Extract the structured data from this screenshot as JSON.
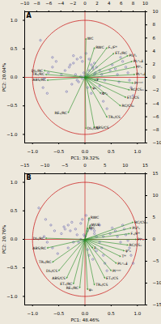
{
  "chart_data": [
    {
      "type": "biplot",
      "title": "A",
      "xlabel": "PC1: 39.32%",
      "ylabel": "PC2: 20.04%",
      "background_color": "#ede8dc",
      "xlim": [
        -1.15,
        1.15
      ],
      "ylim": [
        -1.15,
        1.15
      ],
      "xticks": [
        {
          "value": -1.0,
          "label": "−1.0"
        },
        {
          "value": -0.5,
          "label": "−0.5"
        },
        {
          "value": 0.0,
          "label": "0.0"
        },
        {
          "value": 0.5,
          "label": "0.5"
        },
        {
          "value": 1.0,
          "label": "1.0"
        }
      ],
      "yticks": [
        {
          "value": -1.0,
          "label": "−1.0"
        },
        {
          "value": -0.5,
          "label": "−0.5"
        },
        {
          "value": 0.0,
          "label": "0.0"
        },
        {
          "value": 0.5,
          "label": "0.5"
        },
        {
          "value": 1.0,
          "label": "1.0"
        }
      ],
      "x2lim": [
        -10,
        10
      ],
      "x2ticks": [
        -10,
        -8,
        -6,
        -4,
        -2,
        0,
        2,
        4,
        6,
        8,
        10
      ],
      "y2lim": [
        -10,
        10
      ],
      "y2ticks": [
        -10,
        -8,
        -6,
        -4,
        -2,
        0,
        2,
        4,
        6,
        8,
        10
      ],
      "circle": {
        "radius": 1.0,
        "color": "#cc2222"
      },
      "crosshair": {
        "x": 0,
        "y": 0,
        "color": "#cc2222"
      },
      "arrows": {
        "color": "#228B22",
        "from": [
          0,
          0
        ],
        "items": [
          {
            "x": 0.55,
            "y": 0.42,
            "label": "ET₀/RC"
          },
          {
            "x": 0.82,
            "y": 0.38,
            "label": "PIₐᴮₛ"
          },
          {
            "x": 0.9,
            "y": 0.28,
            "label": "PIₜᵒₜₐℹ"
          },
          {
            "x": 0.95,
            "y": 0.18,
            "label": "PIᵉₛ"
          },
          {
            "x": 0.95,
            "y": 0.05,
            "label": "PIₜᵒₜₐℹ"
          },
          {
            "x": 0.92,
            "y": -0.1,
            "label": "PIᵐᵒᵈ"
          },
          {
            "x": 0.85,
            "y": -0.22,
            "label": "RC/CSₘ"
          },
          {
            "x": 0.78,
            "y": -0.35,
            "label": "ET₀/CS"
          },
          {
            "x": 0.68,
            "y": -0.5,
            "label": "RC/CS₀"
          },
          {
            "x": 0.42,
            "y": -0.7,
            "label": "TR₀/CS"
          },
          {
            "x": 0.18,
            "y": -0.88,
            "label": "ABS/CS"
          },
          {
            "x": 0.02,
            "y": -0.9,
            "label": "DI₀/CS"
          },
          {
            "x": -0.32,
            "y": -0.62,
            "label": "RE₀/RC"
          },
          {
            "x": -0.72,
            "y": -0.05,
            "label": "ABS/RC"
          },
          {
            "x": -0.75,
            "y": 0.05,
            "label": "TR₀/RC"
          },
          {
            "x": -0.78,
            "y": 0.12,
            "label": "DI₀/RC"
          },
          {
            "x": 0.18,
            "y": 0.52,
            "label": "RWC"
          },
          {
            "x": 0.02,
            "y": 0.68,
            "label": "WC"
          },
          {
            "x": 0.42,
            "y": 0.52,
            "label": "Fᵥ/Fᴹ"
          },
          {
            "x": 0.2,
            "y": -0.05,
            "label": "F"
          },
          {
            "x": 0.12,
            "y": -0.18,
            "label": "ψ₀"
          },
          {
            "x": 0.3,
            "y": -0.28,
            "label": "Φᵉ₀"
          }
        ]
      },
      "points": {
        "color": "#5555aa",
        "x": [
          -0.85,
          -0.62,
          -0.55,
          -0.62,
          -0.7,
          -0.78,
          -0.8,
          -0.72,
          -0.45,
          -0.38,
          -0.3,
          -0.22,
          -0.18,
          -0.15,
          -0.25,
          -0.35,
          -0.08,
          -0.05,
          0.02,
          0.08,
          0.12,
          0.15,
          0.18,
          0.22,
          0.28,
          0.32,
          0.35,
          0.42,
          0.48,
          0.52,
          0.58,
          0.62,
          0.65,
          0.68,
          0.72,
          0.78,
          0.82,
          0.85,
          0.88,
          0.92,
          0.2,
          0.15,
          0.08,
          -0.02,
          -0.08,
          -0.12,
          0.05,
          0.12,
          -0.02,
          0.0,
          0.05,
          -0.05,
          0.32,
          0.28,
          0.22,
          0.18,
          -0.15,
          -0.22,
          -0.28,
          0.38
        ],
        "y": [
          0.65,
          0.35,
          0.28,
          0.18,
          0.08,
          -0.02,
          -0.18,
          -0.28,
          0.05,
          0.12,
          0.18,
          0.25,
          0.05,
          -0.05,
          -0.12,
          -0.25,
          0.35,
          0.28,
          0.42,
          0.32,
          0.22,
          0.15,
          0.05,
          -0.05,
          -0.15,
          -0.28,
          -0.42,
          -0.55,
          0.12,
          0.22,
          0.15,
          0.05,
          -0.08,
          0.35,
          0.28,
          0.18,
          0.08,
          -0.05,
          -0.18,
          -0.32,
          0.08,
          0.18,
          0.12,
          0.08,
          0.02,
          -0.08,
          -0.18,
          -0.28,
          0.02,
          0.0,
          0.05,
          -0.02,
          0.05,
          0.12,
          0.18,
          0.25,
          0.32,
          0.38,
          0.22,
          -0.05
        ]
      }
    },
    {
      "type": "biplot",
      "title": "B",
      "xlabel": "PC1: 48.46%",
      "ylabel": "PC2: 20.76%",
      "background_color": "#ede8dc",
      "xlim": [
        -1.15,
        1.15
      ],
      "ylim": [
        -1.15,
        1.15
      ],
      "xticks": [
        {
          "value": -1.0,
          "label": "−1.0"
        },
        {
          "value": -0.5,
          "label": "−0.5"
        },
        {
          "value": 0.0,
          "label": "0.0"
        },
        {
          "value": 0.5,
          "label": "0.5"
        },
        {
          "value": 1.0,
          "label": "1.0"
        }
      ],
      "yticks": [
        {
          "value": -1.0,
          "label": "−1.0"
        },
        {
          "value": -0.5,
          "label": "−0.5"
        },
        {
          "value": 0.0,
          "label": "0.0"
        },
        {
          "value": 0.5,
          "label": "0.5"
        },
        {
          "value": 1.0,
          "label": "1.0"
        }
      ],
      "x2lim": [
        -15,
        15
      ],
      "x2ticks": [
        -15,
        -10,
        -5,
        0,
        5,
        10,
        15
      ],
      "y2lim": [
        -15,
        15
      ],
      "y2ticks": [
        -15,
        -10,
        -5,
        0,
        5,
        10,
        15
      ],
      "circle": {
        "radius": 1.0,
        "color": "#cc2222"
      },
      "crosshair": {
        "x": 0,
        "y": 0,
        "color": "#cc2222"
      },
      "arrows": {
        "color": "#228B22",
        "from": [
          0,
          0
        ],
        "items": [
          {
            "x": 0.92,
            "y": 0.3,
            "label": "RC/CSₘ"
          },
          {
            "x": 0.88,
            "y": 0.2,
            "label": "PIₐᴮₛ"
          },
          {
            "x": 0.85,
            "y": 0.1,
            "label": "Fᵥ/Fᴹ"
          },
          {
            "x": 0.98,
            "y": 0.0,
            "label": "PIᵉₛ"
          },
          {
            "x": 0.82,
            "y": -0.1,
            "label": "RC/CS₀"
          },
          {
            "x": 0.75,
            "y": -0.2,
            "label": "φᵉ₀"
          },
          {
            "x": 0.68,
            "y": -0.3,
            "label": "Tᴹ"
          },
          {
            "x": 0.6,
            "y": -0.42,
            "label": "PIₜᵒₜₐℹ"
          },
          {
            "x": 0.5,
            "y": -0.55,
            "label": "PIᵐᵒᵈ"
          },
          {
            "x": 0.38,
            "y": -0.68,
            "label": "ET₀/CS"
          },
          {
            "x": 0.18,
            "y": -0.8,
            "label": "TR₀/CS"
          },
          {
            "x": 0.05,
            "y": -0.88,
            "label": "ψ₀"
          },
          {
            "x": -0.1,
            "y": -0.85,
            "label": "RE₀/RC"
          },
          {
            "x": -0.22,
            "y": -0.78,
            "label": "ET₀/RC"
          },
          {
            "x": -0.35,
            "y": -0.68,
            "label": "ABS/CS"
          },
          {
            "x": -0.5,
            "y": -0.55,
            "label": "DI₀/CS"
          },
          {
            "x": -0.62,
            "y": -0.4,
            "label": "TR₀/RC"
          },
          {
            "x": -0.72,
            "y": -0.15,
            "label": "ABS/RC"
          },
          {
            "x": -0.75,
            "y": 0.02,
            "label": "DI₀/RC"
          },
          {
            "x": 0.1,
            "y": 0.25,
            "label": "WUE"
          },
          {
            "x": 0.08,
            "y": 0.38,
            "label": "RWC"
          },
          {
            "x": 0.05,
            "y": 0.2,
            "label": "WC"
          },
          {
            "x": 0.15,
            "y": -0.15,
            "label": "F"
          }
        ]
      },
      "points": {
        "color": "#5555aa",
        "x": [
          -0.88,
          -0.75,
          -0.65,
          -0.58,
          -0.78,
          -0.72,
          -0.62,
          -0.52,
          -0.45,
          -0.38,
          -0.32,
          -0.25,
          -0.18,
          -0.15,
          -0.22,
          -0.32,
          -0.08,
          -0.05,
          0.02,
          0.08,
          0.12,
          0.18,
          0.22,
          0.28,
          0.32,
          0.35,
          0.38,
          0.42,
          0.48,
          0.52,
          0.58,
          0.62,
          0.68,
          0.72,
          0.75,
          0.78,
          0.82,
          0.85,
          0.88,
          0.92,
          0.18,
          0.12,
          0.05,
          -0.02,
          -0.08,
          -0.12,
          0.05,
          0.08,
          0.0,
          -0.02,
          0.22,
          0.35,
          -0.28,
          -0.4,
          0.28,
          0.15
        ],
        "y": [
          0.55,
          0.35,
          0.25,
          0.15,
          0.05,
          -0.05,
          -0.15,
          -0.25,
          0.1,
          0.18,
          0.25,
          0.3,
          0.18,
          0.08,
          -0.05,
          -0.15,
          0.28,
          0.35,
          0.42,
          0.35,
          0.25,
          0.15,
          0.05,
          -0.05,
          -0.15,
          -0.28,
          -0.42,
          -0.55,
          0.1,
          0.2,
          0.15,
          0.05,
          -0.05,
          0.25,
          0.18,
          0.08,
          -0.02,
          -0.15,
          -0.28,
          -0.42,
          0.1,
          0.18,
          0.15,
          0.08,
          0.0,
          -0.05,
          -0.18,
          -0.28,
          0.05,
          -0.02,
          -0.2,
          0.05,
          0.15,
          0.22,
          0.25,
          -0.35
        ]
      }
    }
  ]
}
